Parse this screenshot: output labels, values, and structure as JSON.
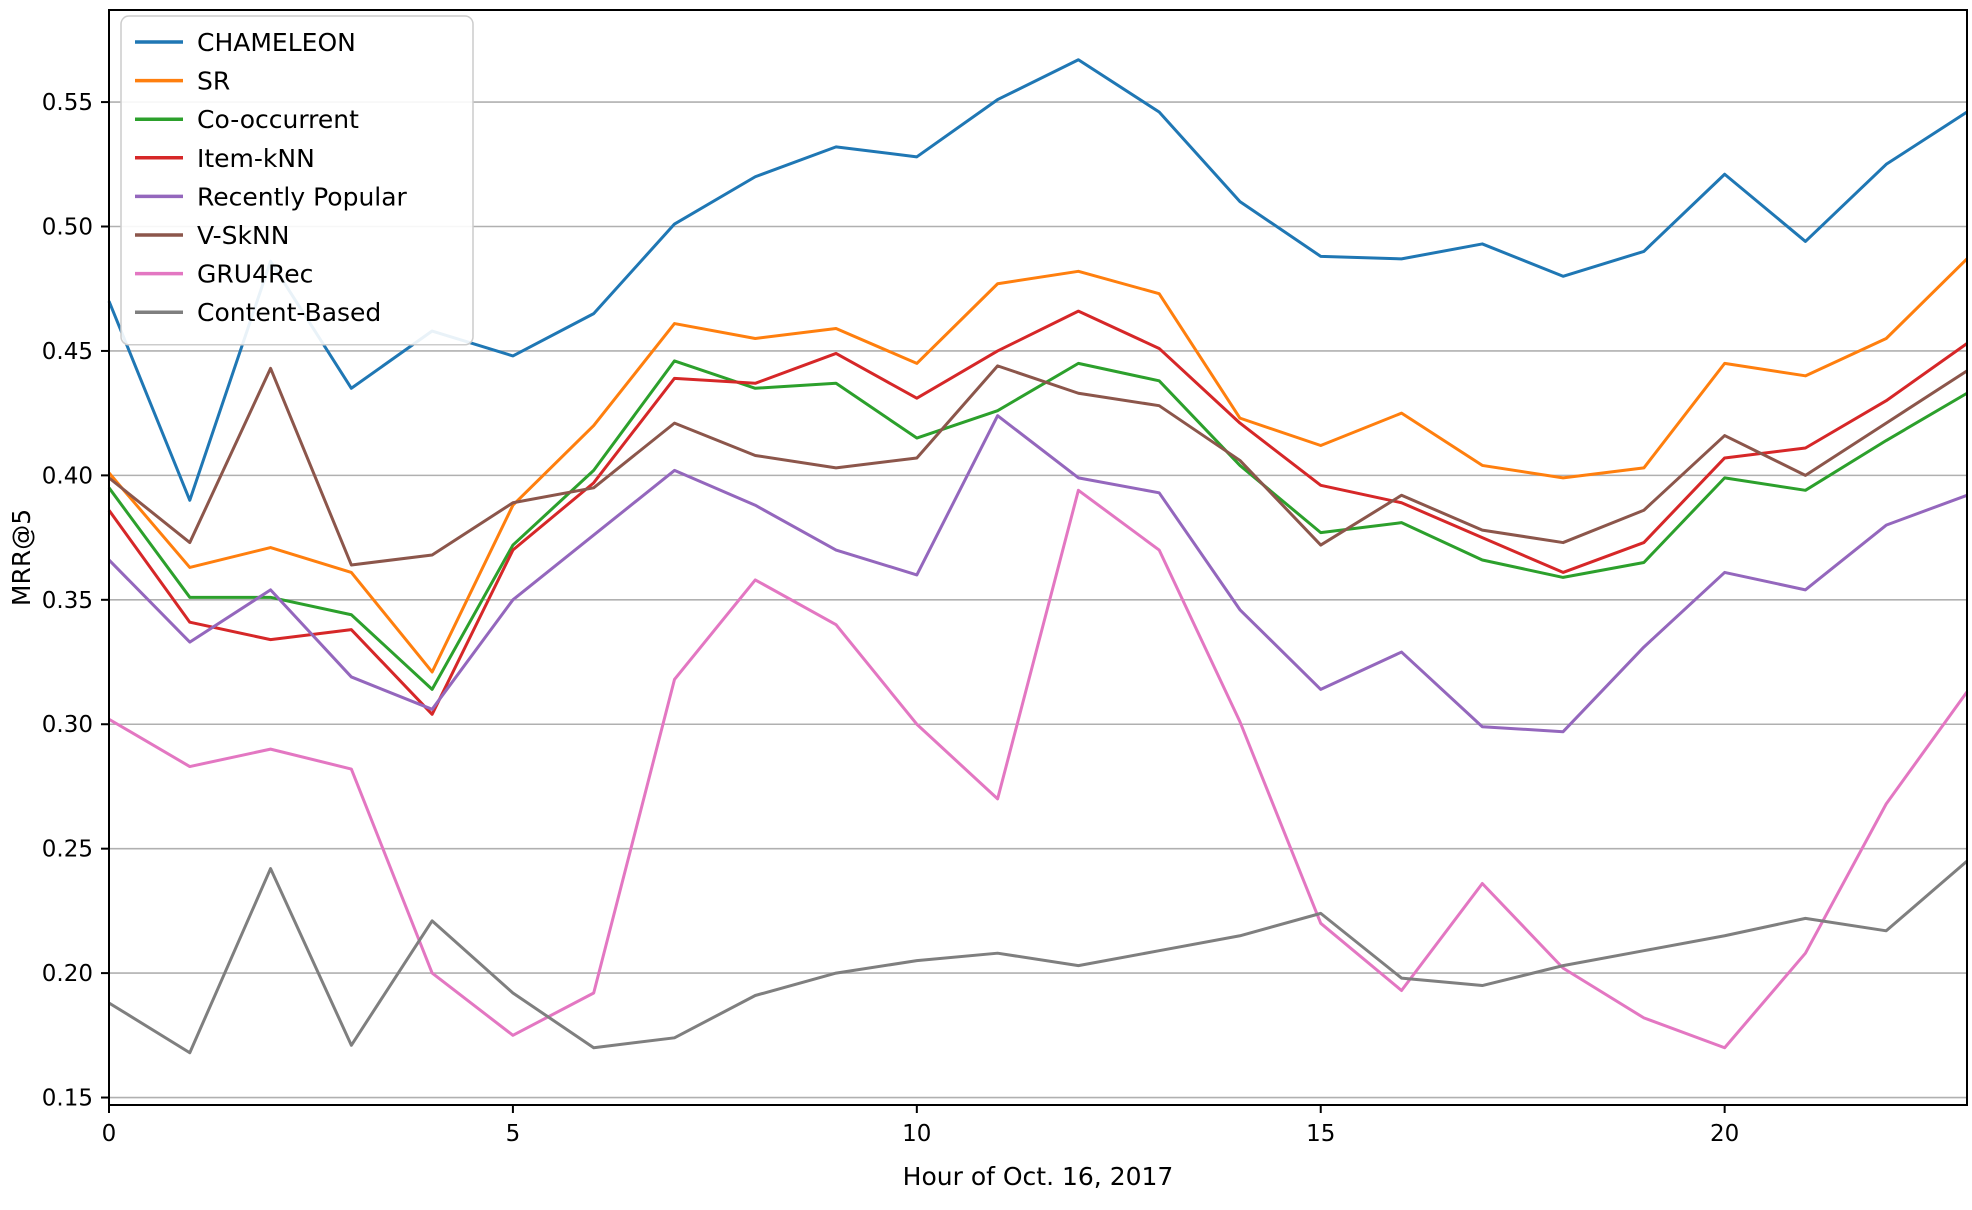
{
  "figure": {
    "xlabel": "Hour of Oct. 16, 2017",
    "ylabel": "MRR@5"
  },
  "chart_data": {
    "type": "line",
    "title": "",
    "xlabel": "Hour of Oct. 16, 2017",
    "ylabel": "MRR@5",
    "x": [
      0,
      1,
      2,
      3,
      4,
      5,
      6,
      7,
      8,
      9,
      10,
      11,
      12,
      13,
      14,
      15,
      16,
      17,
      18,
      19,
      20,
      21,
      22,
      23
    ],
    "xlim": [
      0,
      23
    ],
    "ylim": [
      0.147,
      0.587
    ],
    "xticks": [
      0,
      5,
      10,
      15,
      20
    ],
    "yticks": [
      0.15,
      0.2,
      0.25,
      0.3,
      0.35,
      0.4,
      0.45,
      0.5,
      0.55
    ],
    "grid": "horizontal",
    "grid_color": "#b0b0b0",
    "legend_position": "upper left",
    "series": [
      {
        "name": "CHAMELEON",
        "color": "#1f77b4",
        "values": [
          0.47,
          0.39,
          0.486,
          0.435,
          0.458,
          0.448,
          0.465,
          0.501,
          0.52,
          0.532,
          0.528,
          0.551,
          0.567,
          0.546,
          0.51,
          0.488,
          0.487,
          0.493,
          0.48,
          0.49,
          0.521,
          0.494,
          0.525,
          0.546
        ]
      },
      {
        "name": "SR",
        "color": "#ff7f0e",
        "values": [
          0.401,
          0.363,
          0.371,
          0.361,
          0.321,
          0.388,
          0.42,
          0.461,
          0.455,
          0.459,
          0.445,
          0.477,
          0.482,
          0.473,
          0.423,
          0.412,
          0.425,
          0.404,
          0.399,
          0.403,
          0.445,
          0.44,
          0.455,
          0.487
        ]
      },
      {
        "name": "Co-occurrent",
        "color": "#2ca02c",
        "values": [
          0.395,
          0.351,
          0.351,
          0.344,
          0.314,
          0.372,
          0.402,
          0.446,
          0.435,
          0.437,
          0.415,
          0.426,
          0.445,
          0.438,
          0.404,
          0.377,
          0.381,
          0.366,
          0.359,
          0.365,
          0.399,
          0.394,
          0.414,
          0.433
        ]
      },
      {
        "name": "Item-kNN",
        "color": "#d62728",
        "values": [
          0.386,
          0.341,
          0.334,
          0.338,
          0.304,
          0.37,
          0.397,
          0.439,
          0.437,
          0.449,
          0.431,
          0.45,
          0.466,
          0.451,
          0.421,
          0.396,
          0.389,
          0.375,
          0.361,
          0.373,
          0.407,
          0.411,
          0.43,
          0.453
        ]
      },
      {
        "name": "Recently Popular",
        "color": "#9467bd",
        "values": [
          0.366,
          0.333,
          0.354,
          0.319,
          0.306,
          0.35,
          0.376,
          0.402,
          0.388,
          0.37,
          0.36,
          0.424,
          0.399,
          0.393,
          0.346,
          0.314,
          0.329,
          0.299,
          0.297,
          0.331,
          0.361,
          0.354,
          0.38,
          0.392
        ]
      },
      {
        "name": "V-SkNN",
        "color": "#8c564b",
        "values": [
          0.399,
          0.373,
          0.443,
          0.364,
          0.368,
          0.389,
          0.395,
          0.421,
          0.408,
          0.403,
          0.407,
          0.444,
          0.433,
          0.428,
          0.406,
          0.372,
          0.392,
          0.378,
          0.373,
          0.386,
          0.416,
          0.4,
          0.421,
          0.442
        ]
      },
      {
        "name": "GRU4Rec",
        "color": "#e377c2",
        "values": [
          0.302,
          0.283,
          0.29,
          0.282,
          0.2,
          0.175,
          0.192,
          0.318,
          0.358,
          0.34,
          0.3,
          0.27,
          0.394,
          0.37,
          0.301,
          0.22,
          0.193,
          0.236,
          0.202,
          0.182,
          0.17,
          0.208,
          0.268,
          0.313
        ]
      },
      {
        "name": "Content-Based",
        "color": "#7f7f7f",
        "values": [
          0.188,
          0.168,
          0.242,
          0.171,
          0.221,
          0.192,
          0.17,
          0.174,
          0.191,
          0.2,
          0.205,
          0.208,
          0.203,
          0.209,
          0.215,
          0.224,
          0.198,
          0.195,
          0.203,
          0.209,
          0.215,
          0.222,
          0.217,
          0.245
        ]
      }
    ]
  }
}
